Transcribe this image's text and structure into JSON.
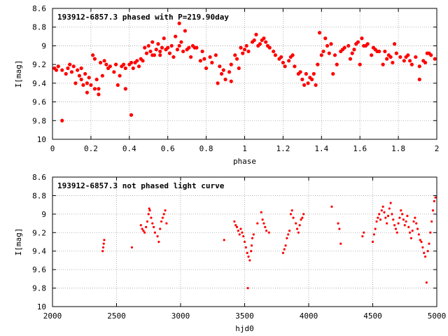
{
  "chart_data": [
    {
      "type": "scatter",
      "title": "193912-6857.3 phased with P=219.90day",
      "xlabel": "phase",
      "ylabel": "I[mag]",
      "xlim": [
        0,
        2
      ],
      "ylim": [
        10,
        8.6
      ],
      "y_inverted": true,
      "grid": true,
      "xticks": [
        "0",
        "0.2",
        "0.4",
        "0.6",
        "0.8",
        "1",
        "1.2",
        "1.4",
        "1.6",
        "1.8",
        "2"
      ],
      "yticks": [
        "8.6",
        "8.8",
        "9",
        "9.2",
        "9.4",
        "9.6",
        "9.8",
        "10"
      ],
      "marker": "filled circle",
      "color": "#ff0000",
      "series": [
        {
          "x": [
            0.01,
            0.03,
            0.05,
            0.07,
            0.08,
            0.1,
            0.11,
            0.13,
            0.14,
            0.15,
            0.17,
            0.18,
            0.19,
            0.2,
            0.21,
            0.22,
            0.23,
            0.24,
            0.25,
            0.27,
            0.28,
            0.3,
            0.32,
            0.33,
            0.35,
            0.37,
            0.38,
            0.4,
            0.41,
            0.42,
            0.44,
            0.45,
            0.46,
            0.48,
            0.49,
            0.5,
            0.51,
            0.52,
            0.54,
            0.55,
            0.56,
            0.57,
            0.58,
            0.6,
            0.61,
            0.62,
            0.63,
            0.65,
            0.66,
            0.67,
            0.68,
            0.7,
            0.72,
            0.73,
            0.75,
            0.77,
            0.78,
            0.8,
            0.82,
            0.83,
            0.85,
            0.87,
            0.88,
            0.9,
            0.92,
            0.93,
            0.95,
            0.96,
            0.98,
            1.0,
            1.01,
            1.02,
            1.04,
            1.05,
            1.07,
            1.08,
            1.1,
            1.11,
            1.13,
            1.15,
            1.16,
            1.18,
            1.2,
            1.21,
            1.23,
            1.25,
            1.26,
            1.28,
            1.3,
            1.31,
            1.33,
            1.35,
            1.36,
            1.38,
            1.4,
            1.41,
            1.43,
            1.45,
            1.47,
            1.48,
            1.5,
            1.52,
            1.54,
            1.56,
            1.57,
            1.59,
            1.61,
            1.62,
            1.64,
            1.66,
            1.68,
            1.7,
            1.72,
            1.74,
            1.75,
            1.77,
            1.79,
            1.81,
            1.83,
            1.85,
            1.87,
            1.89,
            1.91,
            1.93,
            1.95,
            1.97,
            1.99,
            0.05,
            0.12,
            0.16,
            0.18,
            0.22,
            0.24,
            0.29,
            0.34,
            0.38,
            0.41,
            0.47,
            0.53,
            0.56,
            0.64,
            0.66,
            0.69,
            0.74,
            0.86,
            0.93,
            0.97,
            1.06,
            1.12,
            1.24,
            1.32,
            1.37,
            1.39,
            1.42,
            1.46,
            1.55,
            1.6,
            1.63,
            1.67,
            1.73,
            1.78,
            1.84,
            1.91,
            1.96,
            0.02,
            0.09,
            0.15,
            0.26,
            0.36,
            0.43,
            0.52,
            0.59,
            0.71,
            0.79,
            0.89,
            0.99,
            1.09,
            1.19,
            1.29,
            1.34,
            1.44,
            1.51,
            1.58,
            1.69,
            1.76,
            1.86,
            1.94
          ],
          "y": [
            9.24,
            9.22,
            9.26,
            9.3,
            9.24,
            9.28,
            9.22,
            9.26,
            9.32,
            9.36,
            9.3,
            9.4,
            9.34,
            9.42,
            9.1,
            9.14,
            9.36,
            9.46,
            9.18,
            9.16,
            9.2,
            9.22,
            9.28,
            9.2,
            9.32,
            9.2,
            9.24,
            9.2,
            9.18,
            9.24,
            9.16,
            9.22,
            9.14,
            9.02,
            9.08,
            9.0,
            9.06,
            8.96,
            9.04,
            8.98,
            9.1,
            9.02,
            8.92,
            9.02,
            9.08,
            9.0,
            9.12,
            9.04,
            9.0,
            8.96,
            9.06,
            9.04,
            9.12,
            9.0,
            9.02,
            9.16,
            9.06,
            9.24,
            9.12,
            9.18,
            9.1,
            9.22,
            9.3,
            9.36,
            9.28,
            9.2,
            9.1,
            9.14,
            9.02,
            9.04,
            9.0,
            9.06,
            8.96,
            8.94,
            9.0,
            8.98,
            8.92,
            8.96,
            9.02,
            9.06,
            9.1,
            9.14,
            9.18,
            9.22,
            9.16,
            9.1,
            9.22,
            9.3,
            9.36,
            9.42,
            9.4,
            9.36,
            9.3,
            9.2,
            9.1,
            9.06,
            9.0,
            8.98,
            9.1,
            9.2,
            9.06,
            9.02,
            9.0,
            9.08,
            9.04,
            8.96,
            8.92,
            9.0,
            8.98,
            9.1,
            9.04,
            9.06,
            9.2,
            9.14,
            9.1,
            9.18,
            9.08,
            9.12,
            9.16,
            9.1,
            9.2,
            9.12,
            9.22,
            9.16,
            9.08,
            9.1,
            9.14,
            9.8,
            9.4,
            9.42,
            9.5,
            9.46,
            9.52,
            9.24,
            9.42,
            9.46,
            9.74,
            9.16,
            9.1,
            9.06,
            8.9,
            8.76,
            8.84,
            9.02,
            9.4,
            9.38,
            9.24,
            8.88,
            9.0,
            9.12,
            9.3,
            9.42,
            8.86,
            8.92,
            9.3,
            9.14,
            9.2,
            9.0,
            9.02,
            9.06,
            8.98,
            9.12,
            9.36,
            9.08,
            9.26,
            9.2,
            9.24,
            9.32,
            9.22,
            9.18,
            9.1,
            9.04,
            9.02,
            9.14,
            9.26,
            9.08,
            8.94,
            9.12,
            9.28,
            9.34,
            9.08,
            9.04,
            8.98,
            9.06,
            9.12,
            9.16,
            9.18
          ]
        }
      ]
    },
    {
      "type": "scatter",
      "title": "193912-6857.3 not phased light curve",
      "xlabel": "hjd0",
      "ylabel": "I[mag]",
      "xlim": [
        2000,
        5000
      ],
      "ylim": [
        10,
        8.6
      ],
      "y_inverted": true,
      "grid": true,
      "xticks": [
        "2000",
        "2500",
        "3000",
        "3500",
        "4000",
        "4500",
        "5000"
      ],
      "yticks": [
        "8.6",
        "8.8",
        "9",
        "9.2",
        "9.4",
        "9.6",
        "9.8",
        "10"
      ],
      "marker": "small filled circle",
      "color": "#ff0000",
      "series": [
        {
          "x": [
            2392,
            2396,
            2400,
            2404,
            2620,
            2690,
            2700,
            2710,
            2720,
            2730,
            2740,
            2750,
            2755,
            2760,
            2770,
            2780,
            2790,
            2800,
            2820,
            2830,
            2840,
            2850,
            2860,
            2870,
            2880,
            2890,
            3340,
            3420,
            3430,
            3440,
            3450,
            3460,
            3470,
            3480,
            3490,
            3500,
            3510,
            3520,
            3525,
            3530,
            3540,
            3550,
            3555,
            3560,
            3570,
            3600,
            3630,
            3640,
            3650,
            3660,
            3670,
            3690,
            3800,
            3810,
            3820,
            3830,
            3840,
            3850,
            3860,
            3870,
            3880,
            3900,
            3910,
            3920,
            3930,
            3940,
            3950,
            3960,
            4180,
            4230,
            4240,
            4250,
            4420,
            4430,
            4500,
            4510,
            4520,
            4530,
            4540,
            4550,
            4560,
            4570,
            4580,
            4590,
            4600,
            4610,
            4620,
            4630,
            4640,
            4650,
            4660,
            4670,
            4680,
            4690,
            4700,
            4710,
            4720,
            4730,
            4740,
            4750,
            4760,
            4770,
            4780,
            4790,
            4800,
            4810,
            4820,
            4830,
            4840,
            4850,
            4860,
            4870,
            4880,
            4890,
            4900,
            4910,
            4920,
            4930,
            4940,
            4950,
            4960,
            4970,
            4980,
            4990
          ],
          "y": [
            9.4,
            9.36,
            9.32,
            9.28,
            9.36,
            9.12,
            9.16,
            9.18,
            9.2,
            9.14,
            9.08,
            9.0,
            8.94,
            8.96,
            9.04,
            9.1,
            9.14,
            9.2,
            9.24,
            9.3,
            9.16,
            9.08,
            9.04,
            9.0,
            8.96,
            9.1,
            9.28,
            9.08,
            9.12,
            9.14,
            9.18,
            9.22,
            9.16,
            9.2,
            9.24,
            9.3,
            9.36,
            9.42,
            9.8,
            9.46,
            9.5,
            9.4,
            9.34,
            9.26,
            9.22,
            9.1,
            8.98,
            9.06,
            9.1,
            9.14,
            9.18,
            9.2,
            9.42,
            9.38,
            9.34,
            9.26,
            9.22,
            9.18,
            9.0,
            8.96,
            9.04,
            9.1,
            9.16,
            9.2,
            9.12,
            9.06,
            9.04,
            9.0,
            8.92,
            9.1,
            9.16,
            9.32,
            9.24,
            9.2,
            9.3,
            9.22,
            9.16,
            9.08,
            9.04,
            9.0,
            9.06,
            8.96,
            8.92,
            8.98,
            9.04,
            9.1,
            9.02,
            8.94,
            8.88,
            9.0,
            9.06,
            9.12,
            9.16,
            9.2,
            9.1,
            9.04,
            8.96,
            9.0,
            9.06,
            9.12,
            9.08,
            9.02,
            9.14,
            9.2,
            9.26,
            9.18,
            9.08,
            9.04,
            9.1,
            9.16,
            9.22,
            9.28,
            9.3,
            9.36,
            9.42,
            9.46,
            9.74,
            9.4,
            9.32,
            9.2,
            9.08,
            8.96,
            8.86,
            8.82
          ]
        }
      ]
    }
  ]
}
